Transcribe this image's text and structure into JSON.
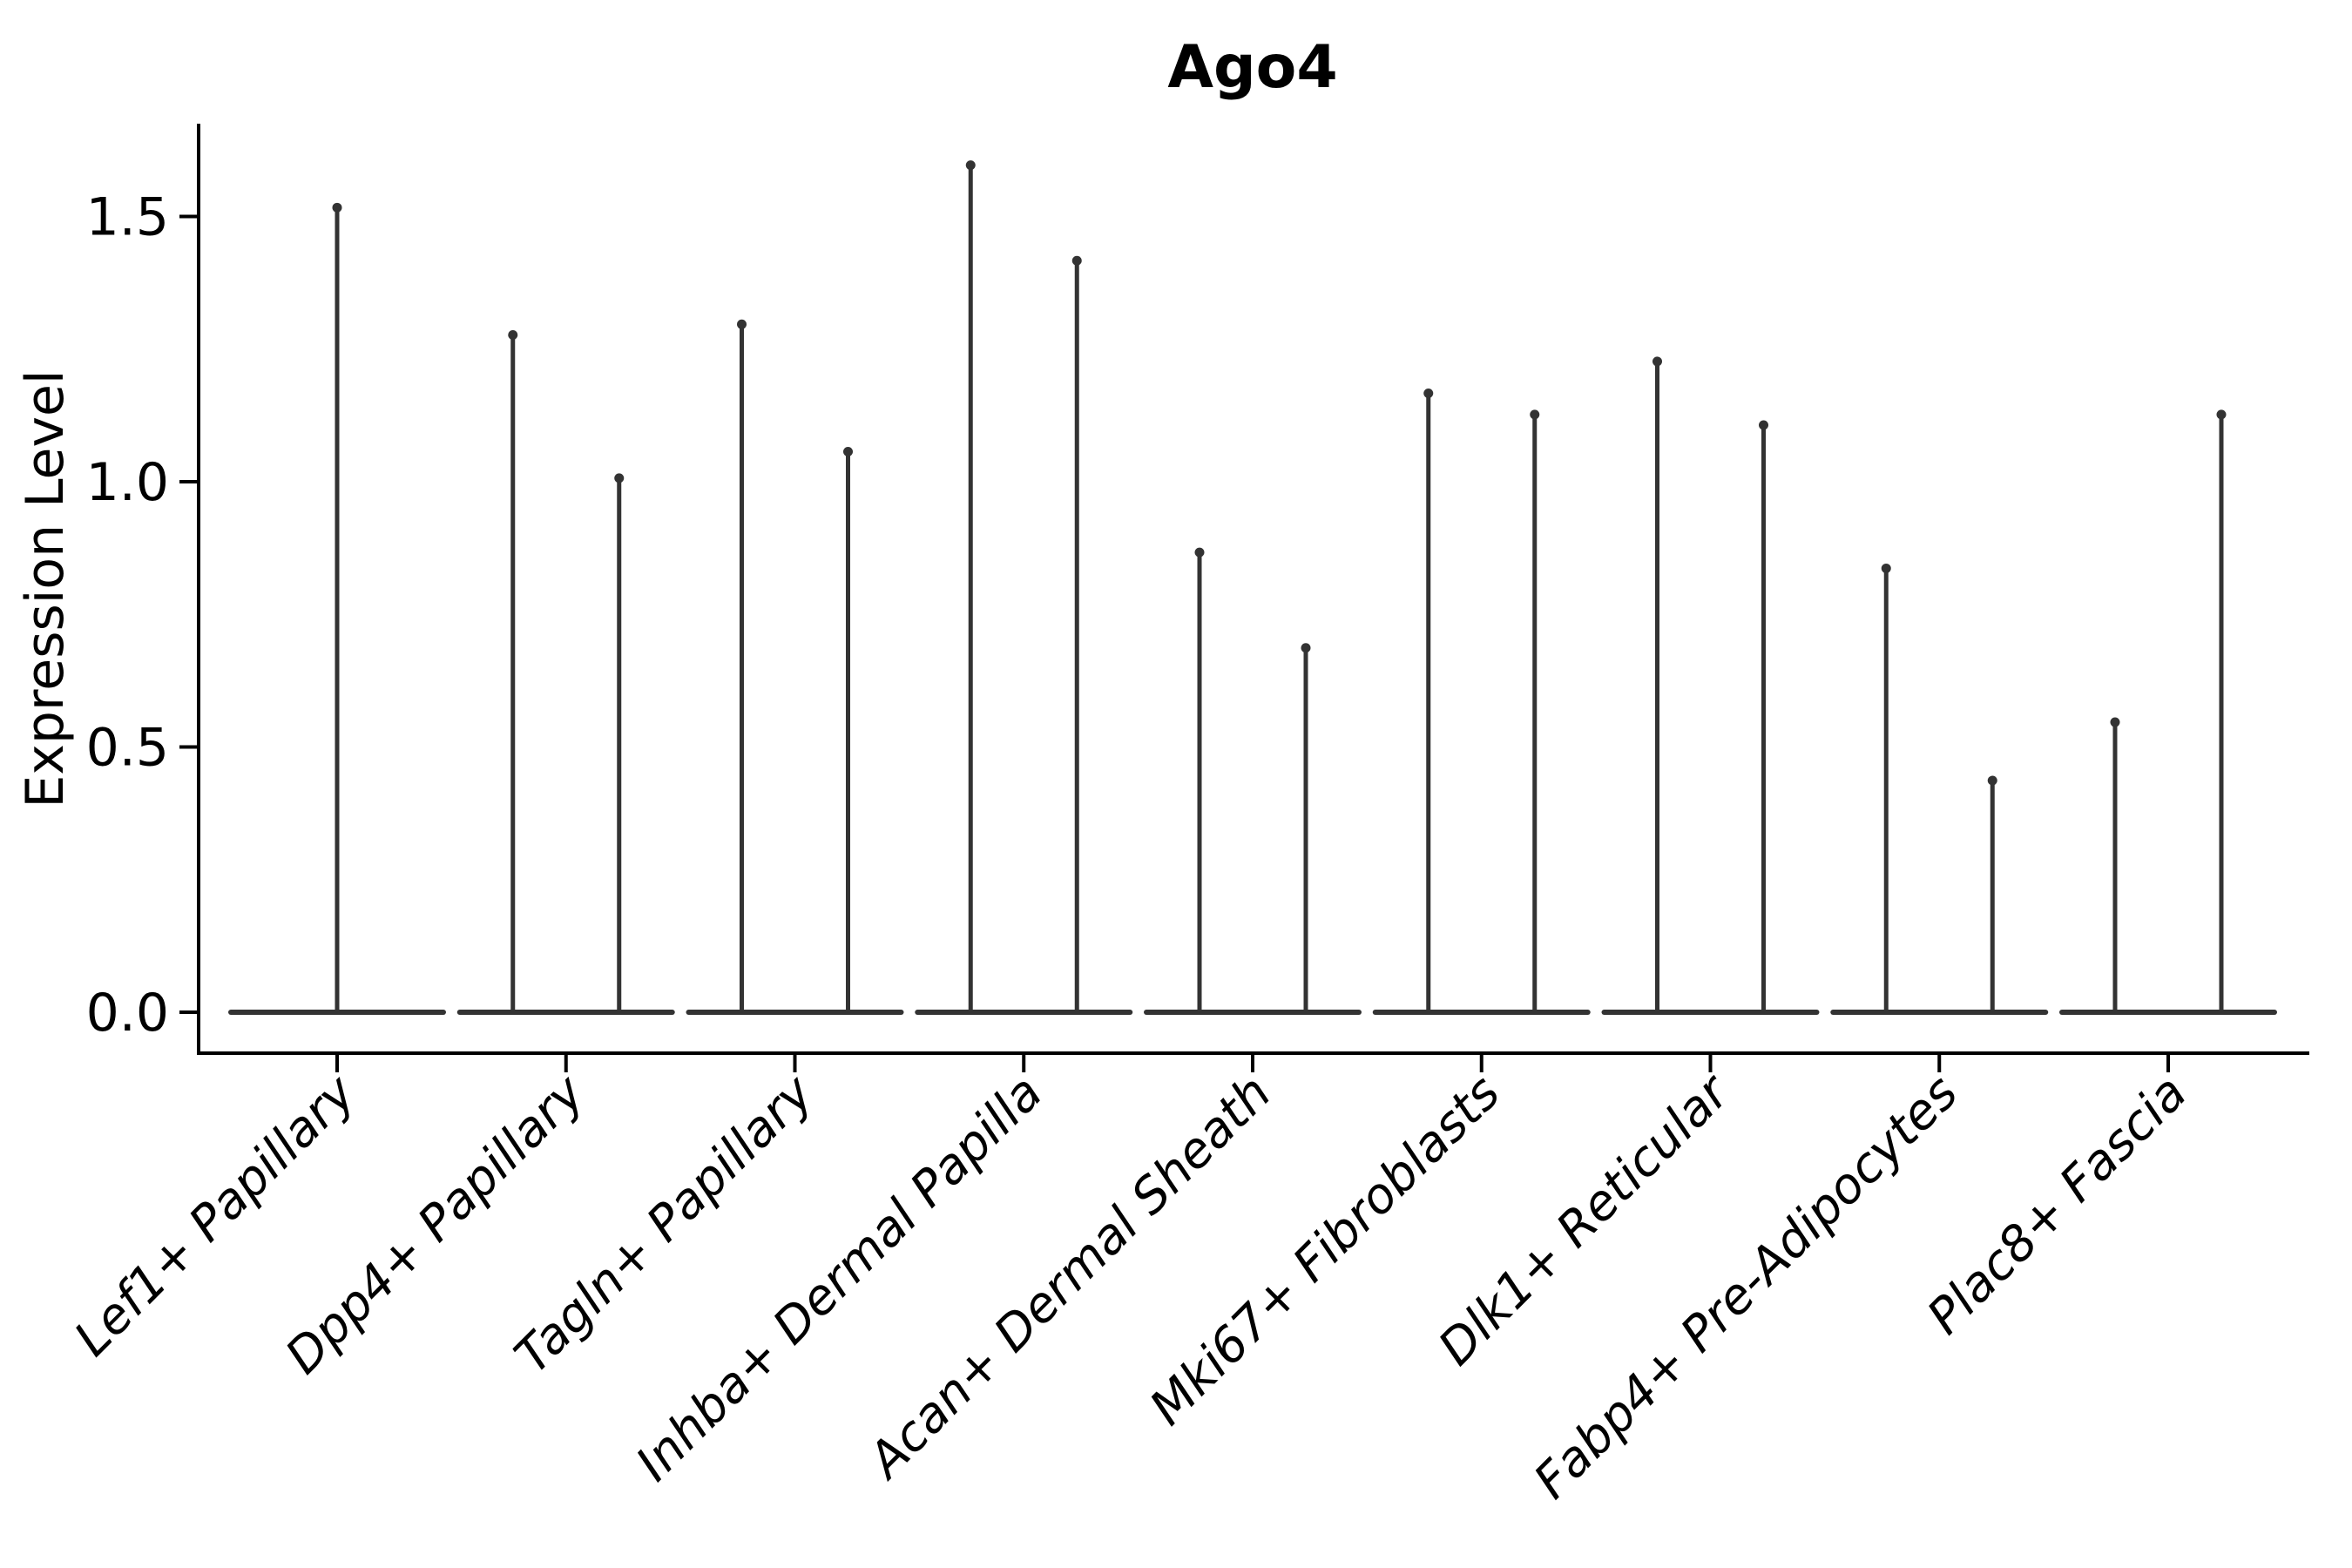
{
  "chart_data": {
    "type": "violin",
    "title": "Ago4",
    "xlabel": "",
    "ylabel": "Expression Level",
    "yticks": [
      0.0,
      0.5,
      1.0,
      1.5
    ],
    "ytick_labels": [
      "0.0",
      "0.5",
      "1.0",
      "1.5"
    ],
    "ylim": [
      -0.08,
      1.67
    ],
    "grid": false,
    "legend": "none",
    "violin_style": "wide flat base at 0 with thin vertical density spike up to the max expression value",
    "categories": [
      {
        "label": "Lef1+ Papillary",
        "spike_maxima": [
          1.52
        ]
      },
      {
        "label": "Dpp4+ Papillary",
        "spike_maxima": [
          1.28,
          1.01
        ]
      },
      {
        "label": "Tagln+ Papillary",
        "spike_maxima": [
          1.3,
          1.06
        ]
      },
      {
        "label": "Inhba+ Dermal Papilla",
        "spike_maxima": [
          1.6,
          1.42
        ]
      },
      {
        "label": "Acan+ Dermal Sheath",
        "spike_maxima": [
          0.87,
          0.69
        ]
      },
      {
        "label": "Mki67+ Fibroblasts",
        "spike_maxima": [
          1.17,
          1.13
        ]
      },
      {
        "label": "Dlk1+ Reticular",
        "spike_maxima": [
          1.23,
          1.11
        ]
      },
      {
        "label": "Fabp4+ Pre-Adipocytes",
        "spike_maxima": [
          0.84,
          0.44
        ]
      },
      {
        "label": "Plac8+ Fascia",
        "spike_maxima": [
          0.55,
          1.13
        ]
      }
    ],
    "colors": {
      "violin": "#333333",
      "axis": "#000000",
      "text": "#000000",
      "background": "#ffffff"
    }
  }
}
